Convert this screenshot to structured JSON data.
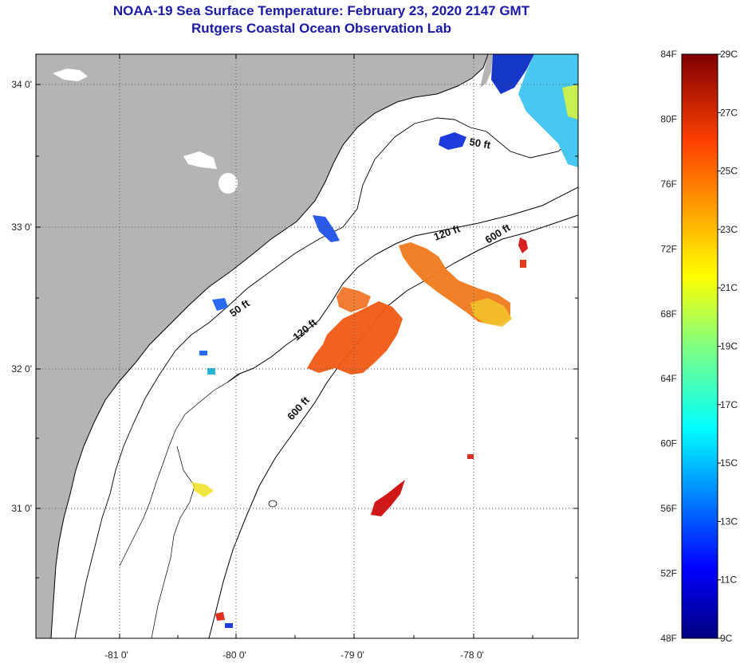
{
  "header": {
    "title": "NOAA-19 Sea Surface Temperature:  February 23, 2020 2147 GMT",
    "subtitle": "Rutgers Coastal Ocean Observation Lab"
  },
  "map": {
    "lon_labels": [
      "-81 0'",
      "-80 0'",
      "-79 0'",
      "-78 0'"
    ],
    "lat_labels": [
      "34 0'",
      "33 0'",
      "32 0'",
      "31 0'"
    ],
    "contour_labels": [
      "50 ft",
      "120 ft",
      "600 ft",
      "50 ft",
      "120 ft",
      "600 ft"
    ],
    "colors": {
      "land": "#b4b4b4",
      "ocean": "#ffffff",
      "title": "#1a1aa6"
    }
  },
  "colorbar": {
    "fahrenheit_labels": [
      "84F",
      "80F",
      "76F",
      "72F",
      "68F",
      "64F",
      "60F",
      "56F",
      "52F",
      "48F"
    ],
    "celsius_labels": [
      "29C",
      "27C",
      "25C",
      "23C",
      "21C",
      "19C",
      "17C",
      "15C",
      "13C",
      "11C",
      "9C"
    ],
    "gradient": [
      "#00007f",
      "#0000ff",
      "#0080ff",
      "#00ffff",
      "#80ff80",
      "#ffff00",
      "#ff8000",
      "#ff0000",
      "#7f0000"
    ]
  }
}
